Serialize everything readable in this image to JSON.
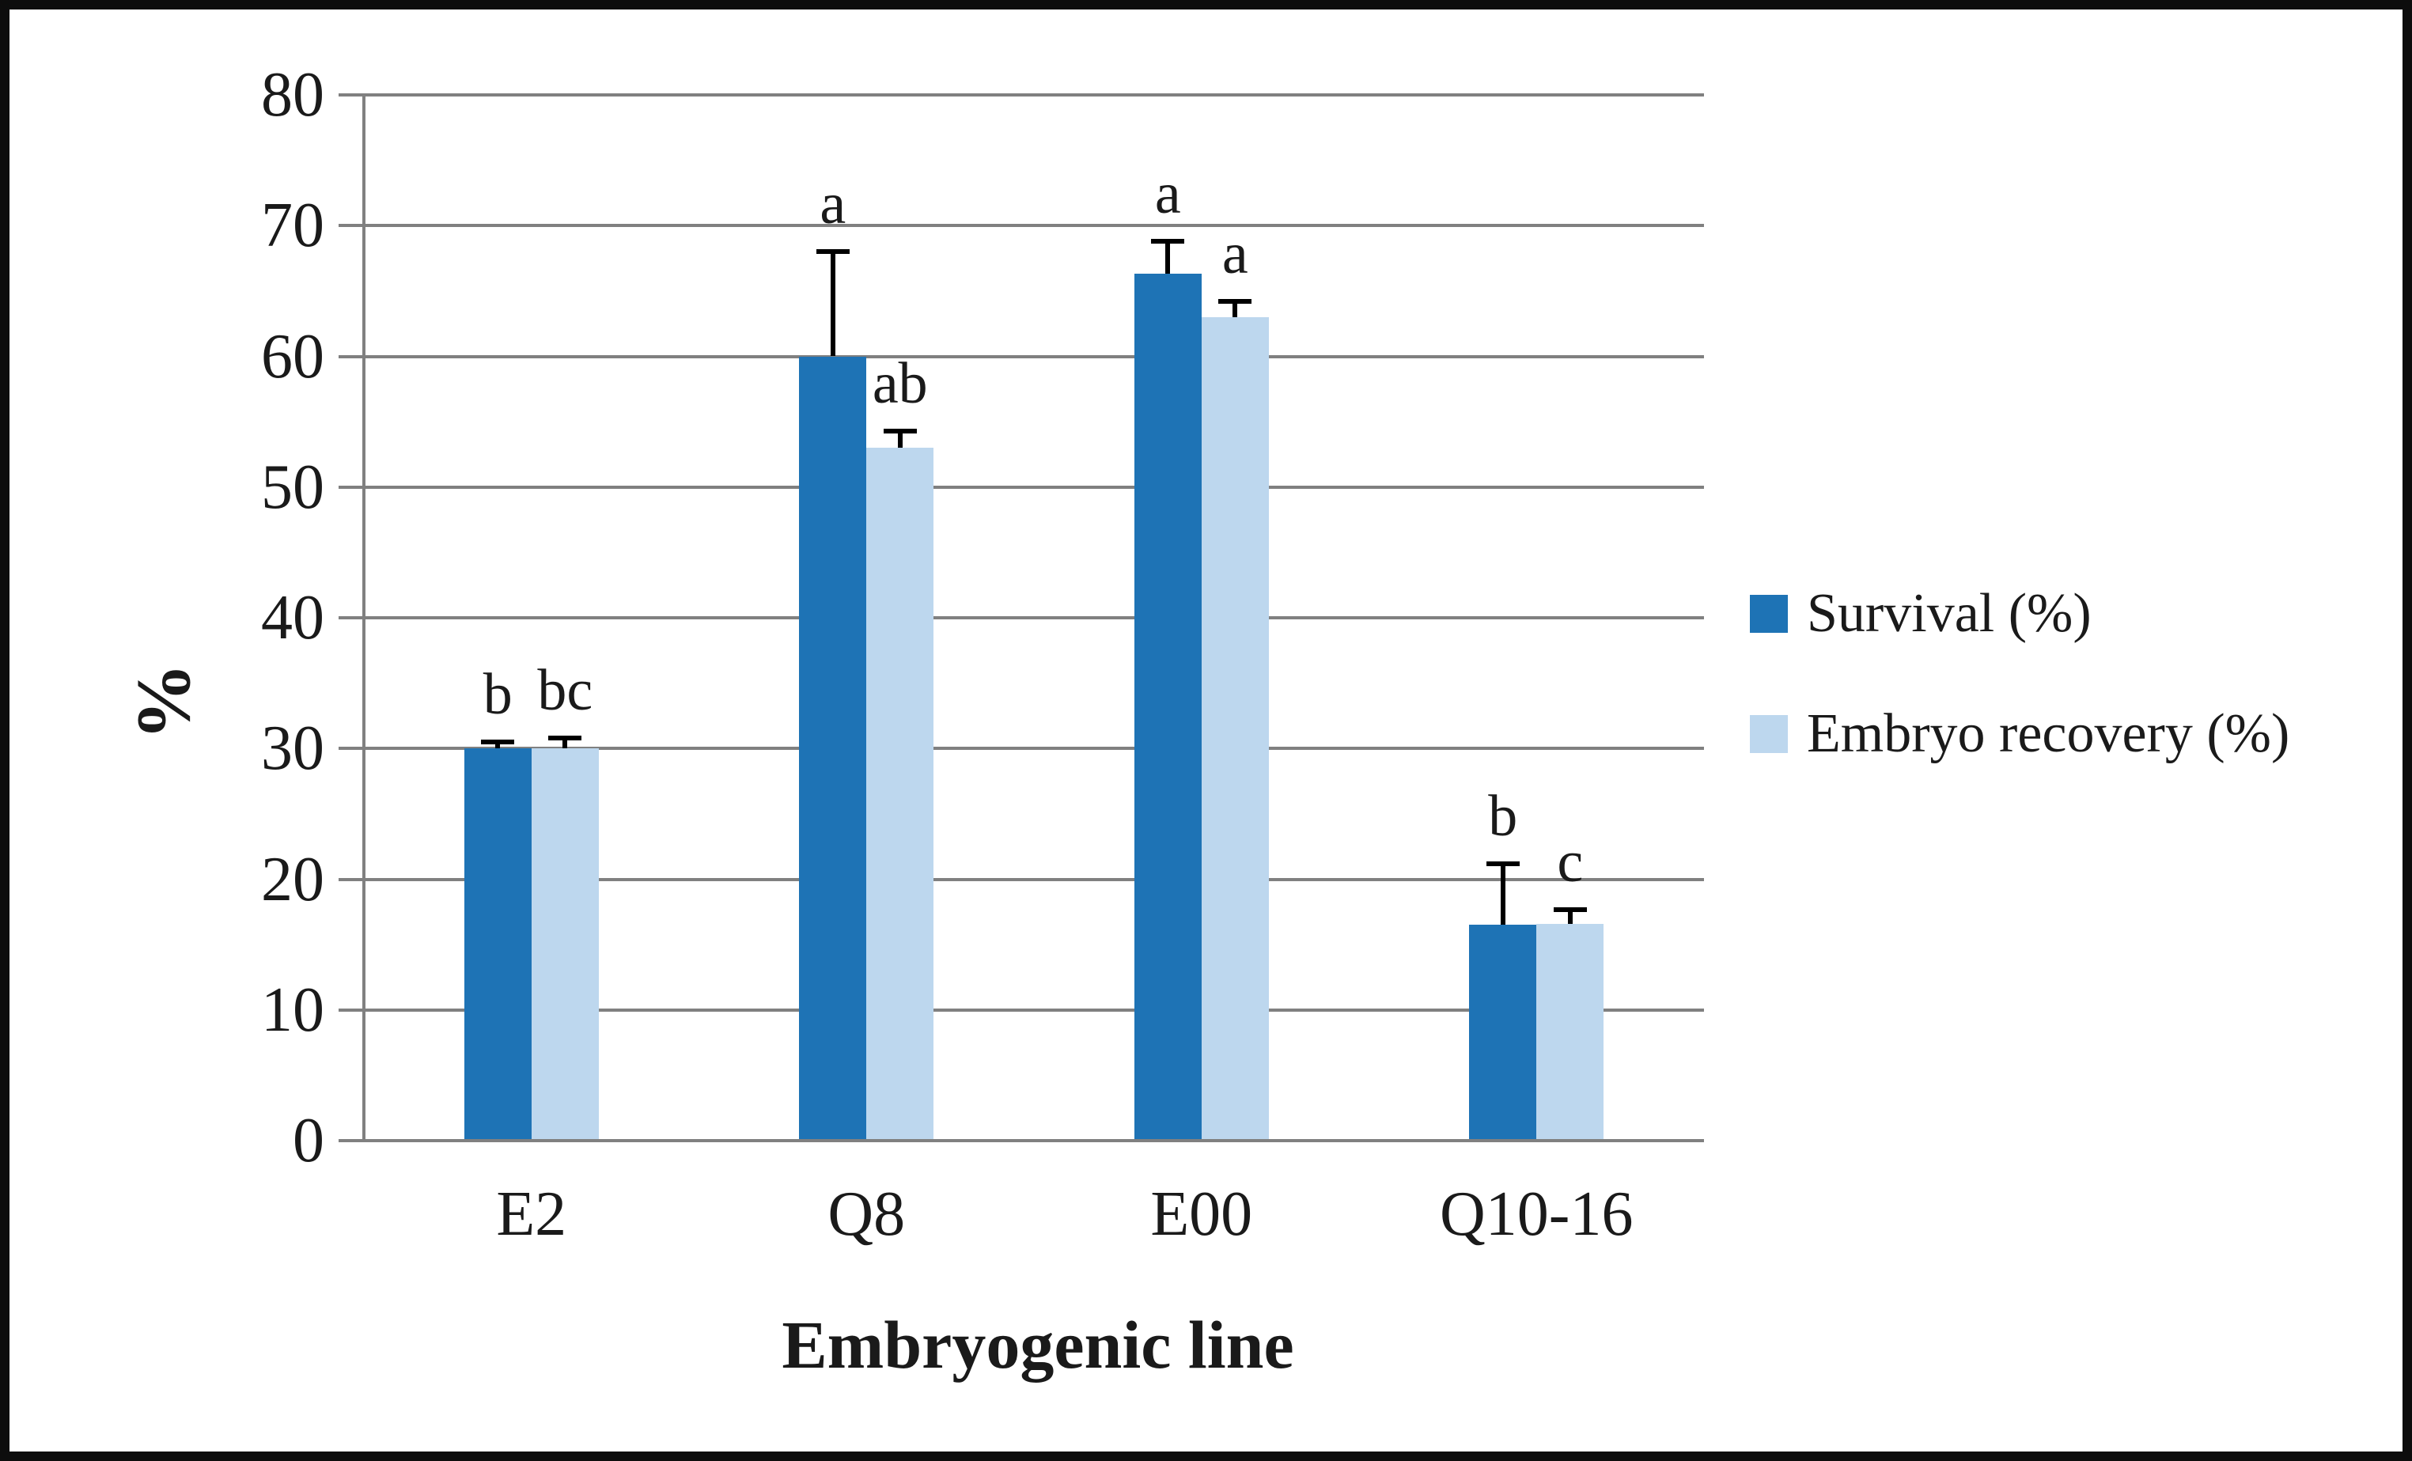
{
  "figure": {
    "background": "#ffffff",
    "border_color": "#0d0d0d"
  },
  "chart_data": {
    "type": "bar",
    "categories": [
      "E2",
      "Q8",
      "E00",
      "Q10-16"
    ],
    "series": [
      {
        "name": "Survival (%)",
        "color": "#1e73b5",
        "values": [
          30,
          60,
          66.3,
          16.5
        ],
        "error_up": [
          0.5,
          8,
          2.5,
          4.7
        ],
        "sig_letters": [
          "b",
          "a",
          "a",
          "b"
        ]
      },
      {
        "name": "Embryo recovery (%)",
        "color": "#bdd7ee",
        "values": [
          30,
          53,
          63,
          16.6
        ],
        "error_up": [
          0.8,
          1.3,
          1.2,
          1.1
        ],
        "sig_letters": [
          "bc",
          "ab",
          "a",
          "c"
        ]
      }
    ],
    "xlabel": "Embryogenic line",
    "ylabel": "%",
    "ylim": [
      0,
      80
    ],
    "yticks": [
      0,
      10,
      20,
      30,
      40,
      50,
      60,
      70,
      80
    ],
    "grid": true,
    "legend_position": "right",
    "gridline_color": "#808080",
    "error_bar_color": "#000000",
    "text_color": "#1a1a1a"
  }
}
